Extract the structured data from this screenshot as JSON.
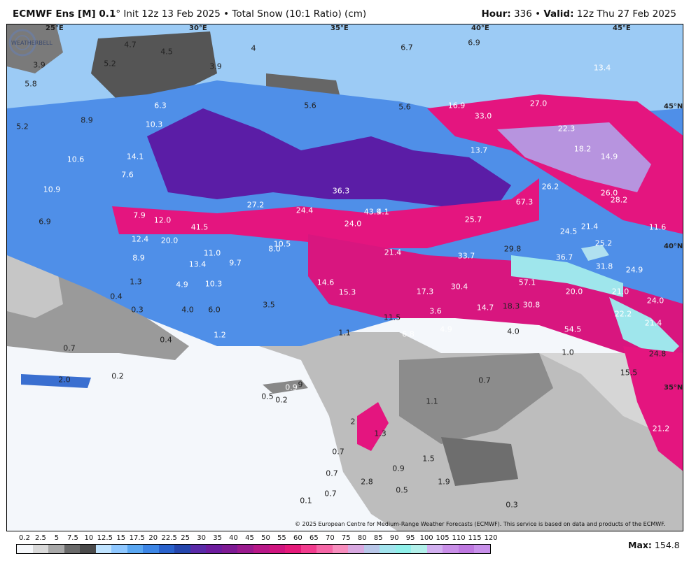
{
  "header": {
    "model": "ECMWF Ens [M] 0.1",
    "degree": "°",
    "init": " Init 12z 13 Feb 2025 • Total Snow (10:1 Ratio) (cm)",
    "hour_label": "Hour:",
    "hour_value": " 336 • ",
    "valid_label": "Valid:",
    "valid_value": " 12z Thu 27 Feb 2025"
  },
  "gridlines": {
    "lon": [
      "25°E",
      "30°E",
      "35°E",
      "40°E",
      "45°E"
    ],
    "lat": [
      "45°N",
      "40°N",
      "35°N"
    ]
  },
  "snow_labels": [
    "3.9",
    "4.7",
    "4.5",
    "5.2",
    "5.8",
    "3.9",
    "4",
    "6.7",
    "6.9",
    "13.4",
    "6.3",
    "8.9",
    "5.6",
    "5.6",
    "16.9",
    "27.0",
    "33.0",
    "22.3",
    "10.3",
    "5.2",
    "18.2",
    "14.9",
    "14.1",
    "10.6",
    "13.7",
    "7.6",
    "10.9",
    "36.3",
    "26.2",
    "26.0",
    "28.2",
    "27.2",
    "24.4",
    "43.9",
    "4.1",
    "67.3",
    "7.9",
    "12.0",
    "41.5",
    "24.0",
    "25.7",
    "21.4",
    "11.6",
    "6.9",
    "12.4",
    "20.0",
    "11.0",
    "8.0",
    "10.5",
    "21.4",
    "24.5",
    "25.2",
    "8.9",
    "13.4",
    "9.7",
    "33.7",
    "29.8",
    "36.7",
    "31.8",
    "24.9",
    "1.3",
    "4.9",
    "10.3",
    "14.6",
    "15.3",
    "17.3",
    "30.4",
    "57.1",
    "20.0",
    "21.0",
    "24.0",
    "0.4",
    "0.3",
    "4.0",
    "6.0",
    "3.5",
    "14.7",
    "18.3",
    "30.8",
    "22.2",
    "21.4",
    "3.6",
    "11.5",
    "4.9",
    "6.8",
    "4.0",
    "54.5",
    "1.2",
    "1.1",
    "0.7",
    "0.4",
    "1.0",
    "24.8",
    "0.2",
    "2.0",
    "0.7",
    "9",
    "15.5",
    "0.9",
    "0.5",
    "0.2",
    "1.1",
    "2",
    "1.3",
    "0.7",
    "0.9",
    "1.5",
    "0.7",
    "2.8",
    "1.9",
    "0.5",
    "0.7",
    "0.1",
    "0.3",
    "21.2"
  ],
  "copyright": "© 2025 European Centre for Medium-Range Weather Forecasts (ECMWF). This service is based on data and products of the ECMWF.",
  "colorbar": {
    "ticks": [
      "0.2",
      "2.5",
      "5",
      "7.5",
      "10",
      "12.5",
      "15",
      "17.5",
      "20",
      "22.5",
      "25",
      "30",
      "35",
      "40",
      "45",
      "50",
      "55",
      "60",
      "65",
      "70",
      "75",
      "80",
      "85",
      "90",
      "95",
      "100",
      "105",
      "110",
      "115",
      "120"
    ],
    "colors": [
      "#f5f7fa",
      "#d9d9d9",
      "#a8a8a8",
      "#6a6a6a",
      "#4a4a4a",
      "#bfe3ff",
      "#8ec7ff",
      "#5aa7f2",
      "#3d86e6",
      "#2a62cc",
      "#2546ad",
      "#5a2aa8",
      "#6d1c9e",
      "#7e1a94",
      "#9a1a8e",
      "#b81888",
      "#d0157f",
      "#e51a7a",
      "#f23c8e",
      "#f566a6",
      "#f78dbd",
      "#d8a8e0",
      "#b8c6e8",
      "#a2e4ee",
      "#90f0ea",
      "#b2f0ea",
      "#d2b0f0",
      "#c98fe8",
      "#be78e0",
      "#c890ea"
    ],
    "max_label": "Max:",
    "max_value": " 154.8"
  },
  "logo_text": "WEATHERBELL"
}
